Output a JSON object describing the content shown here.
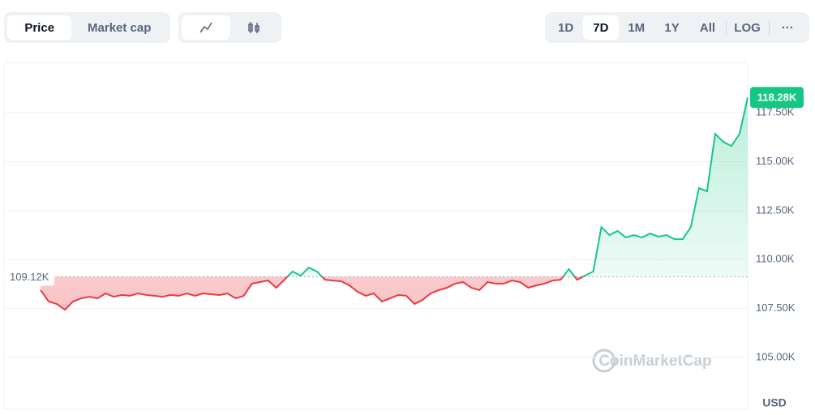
{
  "ui": {
    "metric_tabs": [
      "Price",
      "Market cap"
    ],
    "ranges": [
      "1D",
      "7D",
      "1M",
      "1Y",
      "All"
    ],
    "log": "LOG",
    "more": "···",
    "watermark": "CoinMarketCap",
    "currency": "USD"
  },
  "chart_data": {
    "type": "line",
    "colors": {
      "up": "#16c784",
      "down": "#ea3943"
    },
    "baseline": {
      "value": 109120,
      "label": "109.12K"
    },
    "current_price": {
      "value": 118280,
      "label": "118.28K"
    },
    "ylim": [
      102350,
      120070
    ],
    "yticks": [
      {
        "value": 105000,
        "label": "105.00K"
      },
      {
        "value": 107500,
        "label": "107.50K"
      },
      {
        "value": 110000,
        "label": "110.00K"
      },
      {
        "value": 112500,
        "label": "112.50K"
      },
      {
        "value": 115000,
        "label": "115.00K"
      },
      {
        "value": 117500,
        "label": "117.50K"
      }
    ],
    "grid": true,
    "values": [
      108440,
      107860,
      107730,
      107440,
      107860,
      108020,
      108100,
      108020,
      108270,
      108100,
      108190,
      108150,
      108270,
      108190,
      108150,
      108100,
      108190,
      108150,
      108270,
      108150,
      108270,
      108230,
      108190,
      108270,
      108020,
      108150,
      108770,
      108850,
      108930,
      108560,
      108970,
      109390,
      109180,
      109590,
      109390,
      108970,
      108930,
      108890,
      108680,
      108350,
      108150,
      108270,
      107860,
      108020,
      108190,
      108150,
      107730,
      107940,
      108270,
      108440,
      108560,
      108770,
      108850,
      108560,
      108440,
      108850,
      108770,
      108770,
      108930,
      108850,
      108560,
      108680,
      108770,
      108930,
      108970,
      109510,
      108970,
      109180,
      109390,
      111660,
      111250,
      111460,
      111130,
      111250,
      111130,
      111330,
      111170,
      111250,
      111040,
      111040,
      111660,
      113650,
      113490,
      116420,
      116010,
      115800,
      116420,
      118280
    ]
  }
}
